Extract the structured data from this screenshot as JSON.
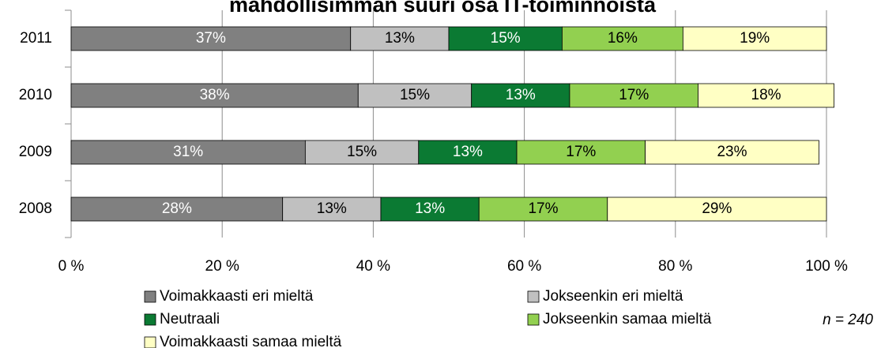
{
  "chart_data": {
    "type": "stacked_barh",
    "title": "mahdollisimman suuri osa IT-toiminnoista",
    "categories": [
      "2011",
      "2010",
      "2009",
      "2008"
    ],
    "series": [
      {
        "name": "Voimakkaasti eri mieltä",
        "color": "#808080",
        "values": [
          37,
          38,
          31,
          28
        ],
        "value_labels": [
          "37%",
          "38%",
          "31%",
          "28%"
        ]
      },
      {
        "name": "Jokseenkin eri mieltä",
        "color": "#c0c0c0",
        "values": [
          13,
          15,
          15,
          13
        ],
        "value_labels": [
          "13%",
          "15%",
          "15%",
          "13%"
        ]
      },
      {
        "name": "Neutraali",
        "color": "#0b7a33",
        "values": [
          15,
          13,
          13,
          13
        ],
        "value_labels": [
          "15%",
          "13%",
          "13%",
          "13%"
        ]
      },
      {
        "name": "Jokseenkin samaa mieltä",
        "color": "#92d050",
        "values": [
          16,
          17,
          17,
          17
        ],
        "value_labels": [
          "16%",
          "17%",
          "17%",
          "17%"
        ]
      },
      {
        "name": "Voimakkaasti samaa mieltä",
        "color": "#ffffc4",
        "values": [
          19,
          18,
          23,
          29
        ],
        "value_labels": [
          "19%",
          "18%",
          "23%",
          "29%"
        ]
      }
    ],
    "xlim": [
      0,
      100
    ],
    "xticks": [
      {
        "value": 0,
        "label": "0 %"
      },
      {
        "value": 20,
        "label": "20 %"
      },
      {
        "value": 40,
        "label": "40 %"
      },
      {
        "value": 60,
        "label": "60 %"
      },
      {
        "value": 80,
        "label": "80 %"
      },
      {
        "value": 100,
        "label": "100 %"
      }
    ],
    "grid": true,
    "annotation": "n = 240"
  }
}
